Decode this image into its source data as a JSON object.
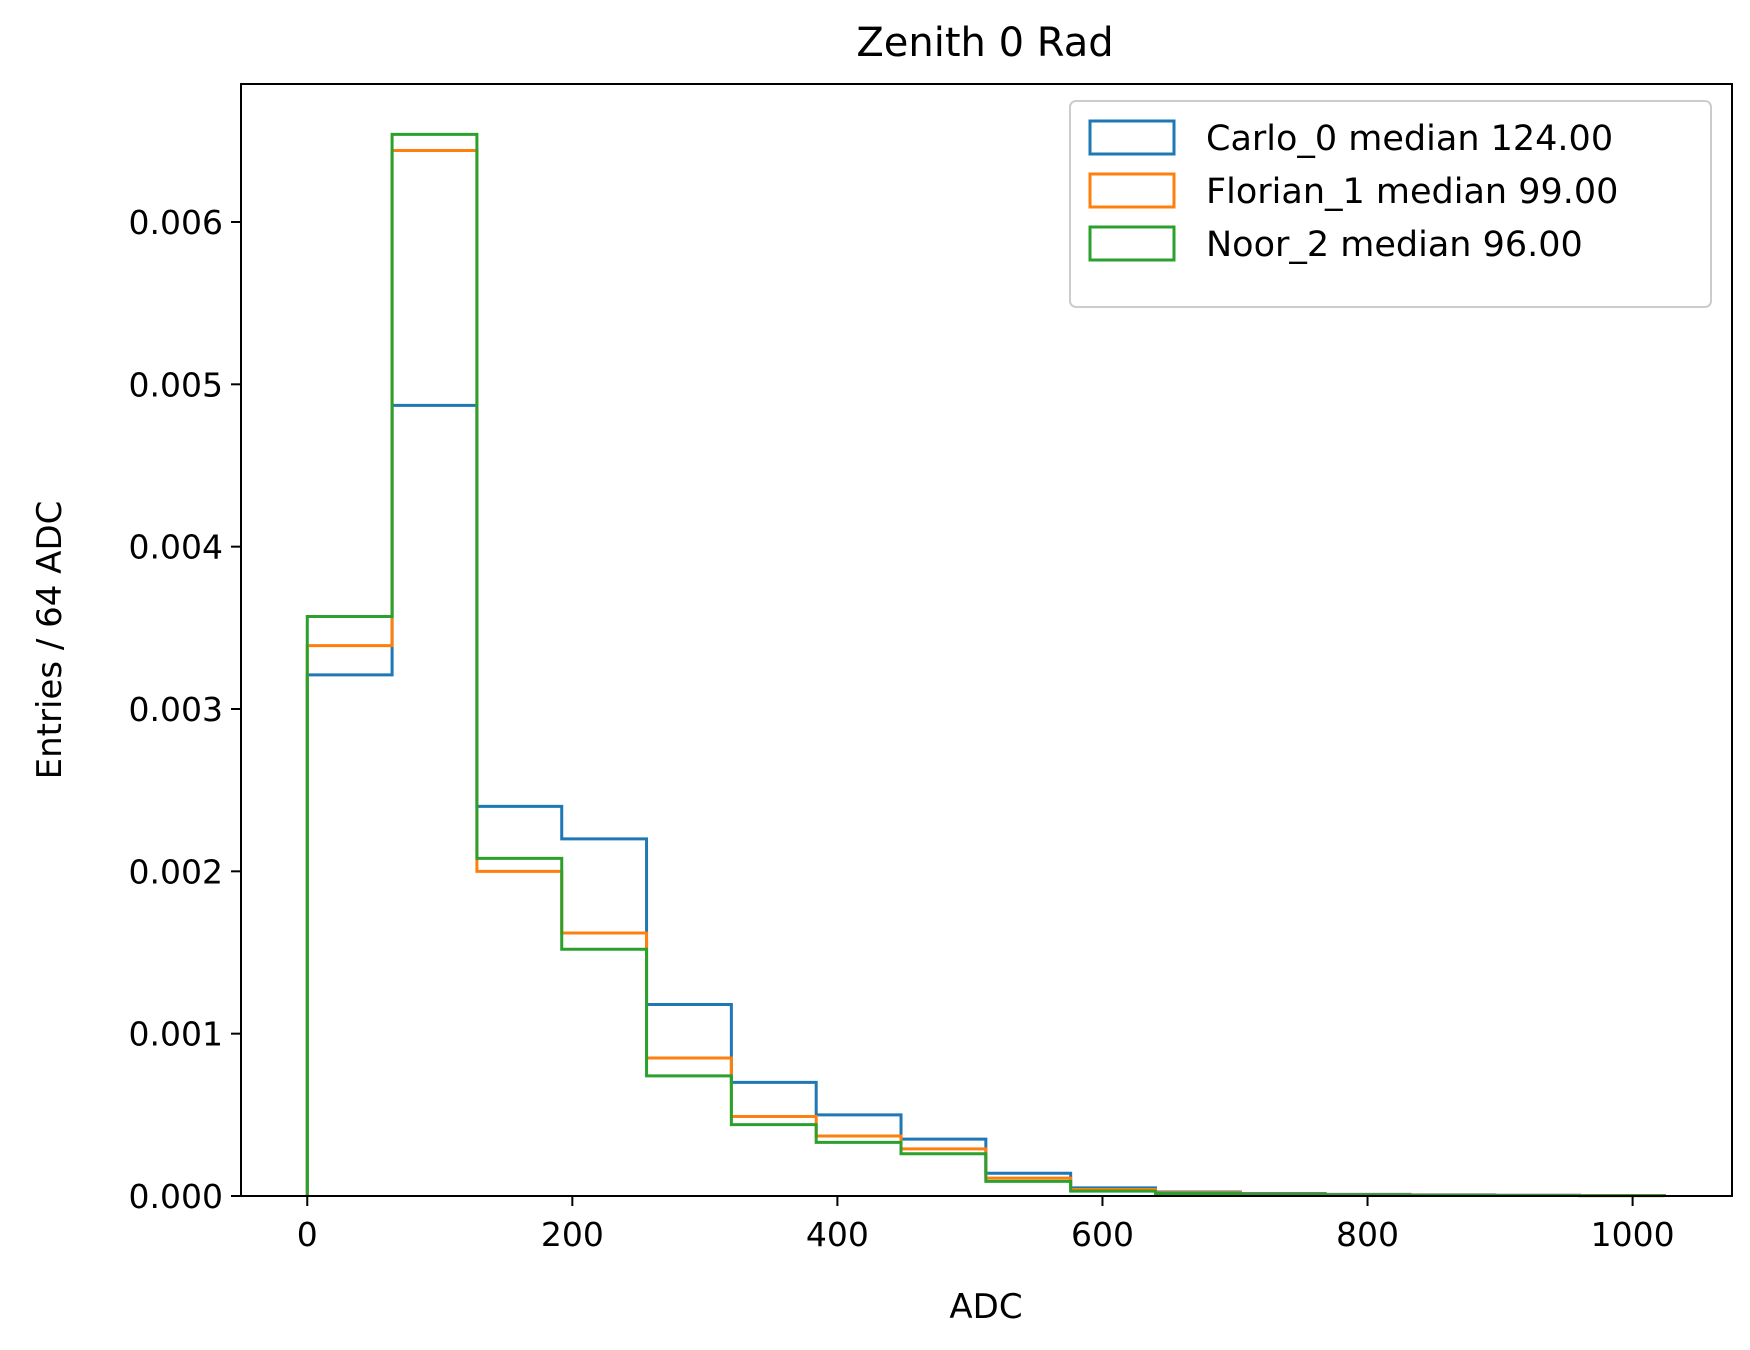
{
  "chart_data": {
    "type": "histogram",
    "title": "Zenith 0 Rad",
    "xlabel": "ADC",
    "ylabel": "Entries / 64 ADC",
    "xlim": [
      -50,
      1075
    ],
    "ylim": [
      0,
      0.00685
    ],
    "xticks": [
      0,
      200,
      400,
      600,
      800,
      1000
    ],
    "xtick_labels": [
      "0",
      "200",
      "400",
      "600",
      "800",
      "1000"
    ],
    "yticks": [
      0,
      0.001,
      0.002,
      0.003,
      0.004,
      0.005,
      0.006
    ],
    "ytick_labels": [
      "0.000",
      "0.001",
      "0.002",
      "0.003",
      "0.004",
      "0.005",
      "0.006"
    ],
    "grid": false,
    "legend_position": "top-right",
    "bin_edges": [
      0,
      64,
      128,
      192,
      256,
      320,
      384,
      448,
      512,
      576,
      640,
      704,
      768,
      832,
      896,
      960,
      1024
    ],
    "series": [
      {
        "name": "Carlo_0 median 124.00",
        "color": "#1f77b4",
        "values": [
          0.00321,
          0.00487,
          0.0024,
          0.0022,
          0.00118,
          0.0007,
          0.0005,
          0.00035,
          0.00014,
          5e-05,
          2.5e-05,
          1.5e-05,
          1e-05,
          7e-06,
          5e-06,
          3e-06
        ]
      },
      {
        "name": "Florian_1 median 99.00",
        "color": "#ff7f0e",
        "values": [
          0.00339,
          0.00644,
          0.002,
          0.00162,
          0.00085,
          0.00049,
          0.00037,
          0.00029,
          0.00011,
          4e-05,
          2e-05,
          1.2e-05,
          8e-06,
          5e-06,
          4e-06,
          2e-06
        ]
      },
      {
        "name": "Noor_2 median 96.00",
        "color": "#2ca02c",
        "values": [
          0.00357,
          0.00654,
          0.00208,
          0.00152,
          0.00074,
          0.00044,
          0.00033,
          0.00026,
          9e-05,
          3e-05,
          1.5e-05,
          1e-05,
          6e-06,
          4e-06,
          3e-06,
          2e-06
        ]
      }
    ]
  }
}
